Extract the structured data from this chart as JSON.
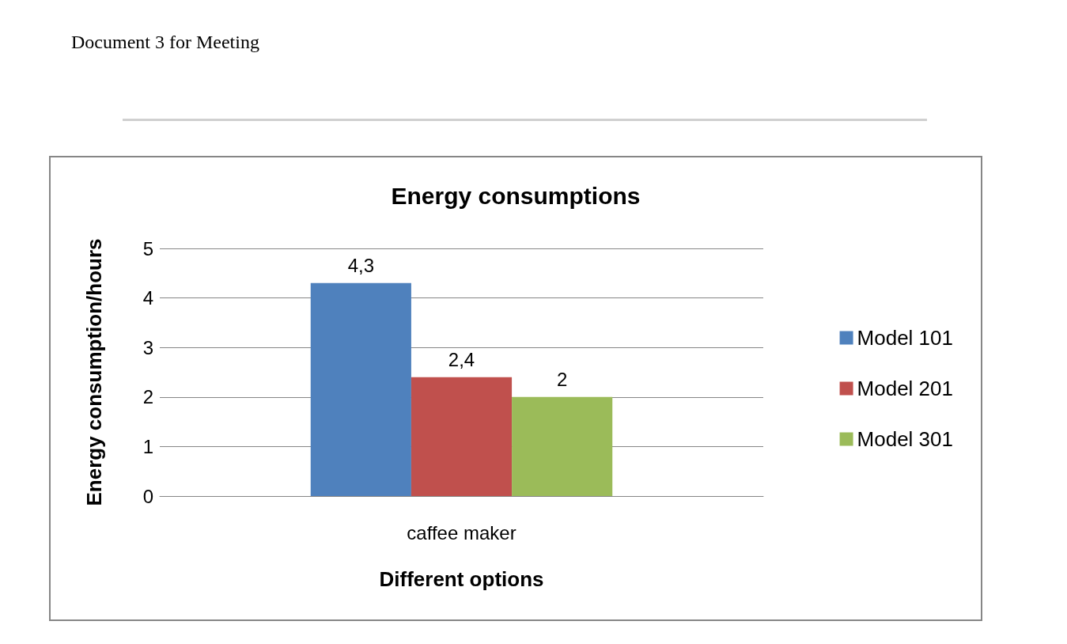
{
  "chart_data": {
    "type": "bar",
    "title": "Energy consumptions",
    "xlabel": "Different options",
    "ylabel": "Energy consumption/hours",
    "annotations": [
      "Document 3 for Meeting"
    ],
    "categories": [
      "caffee maker"
    ],
    "series": [
      {
        "name": "Model 101",
        "color": "#4f81bd",
        "values": [
          4.3
        ],
        "value_labels": [
          "4,3"
        ]
      },
      {
        "name": "Model 201",
        "color": "#c0504d",
        "values": [
          2.4
        ],
        "value_labels": [
          "2,4"
        ]
      },
      {
        "name": "Model 301",
        "color": "#9bbb59",
        "values": [
          2
        ],
        "value_labels": [
          "2"
        ]
      }
    ],
    "ylim": [
      0,
      5
    ],
    "yticks": [
      0,
      1,
      2,
      3,
      4,
      5
    ],
    "grid": "y",
    "legend": "right"
  }
}
